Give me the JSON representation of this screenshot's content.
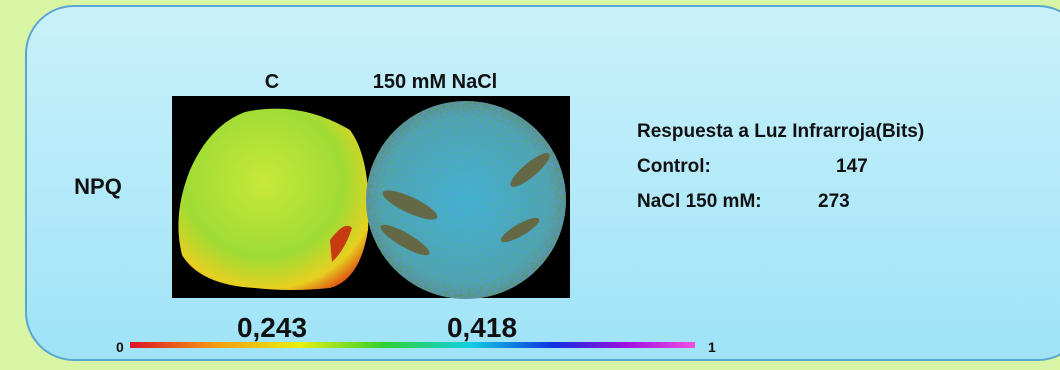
{
  "panel": {
    "labels": {
      "control": "C",
      "treatment": "150 mM NaCl"
    },
    "parameter": "NPQ",
    "values": [
      "0,243",
      "0,418"
    ],
    "scale": {
      "min": "0",
      "max": "1"
    }
  },
  "info": {
    "title": "Respuesta a Luz Infrarroja(Bits)",
    "rows": [
      [
        "Control:",
        "147"
      ],
      [
        "NaCl 150 mM:",
        "273"
      ]
    ]
  }
}
